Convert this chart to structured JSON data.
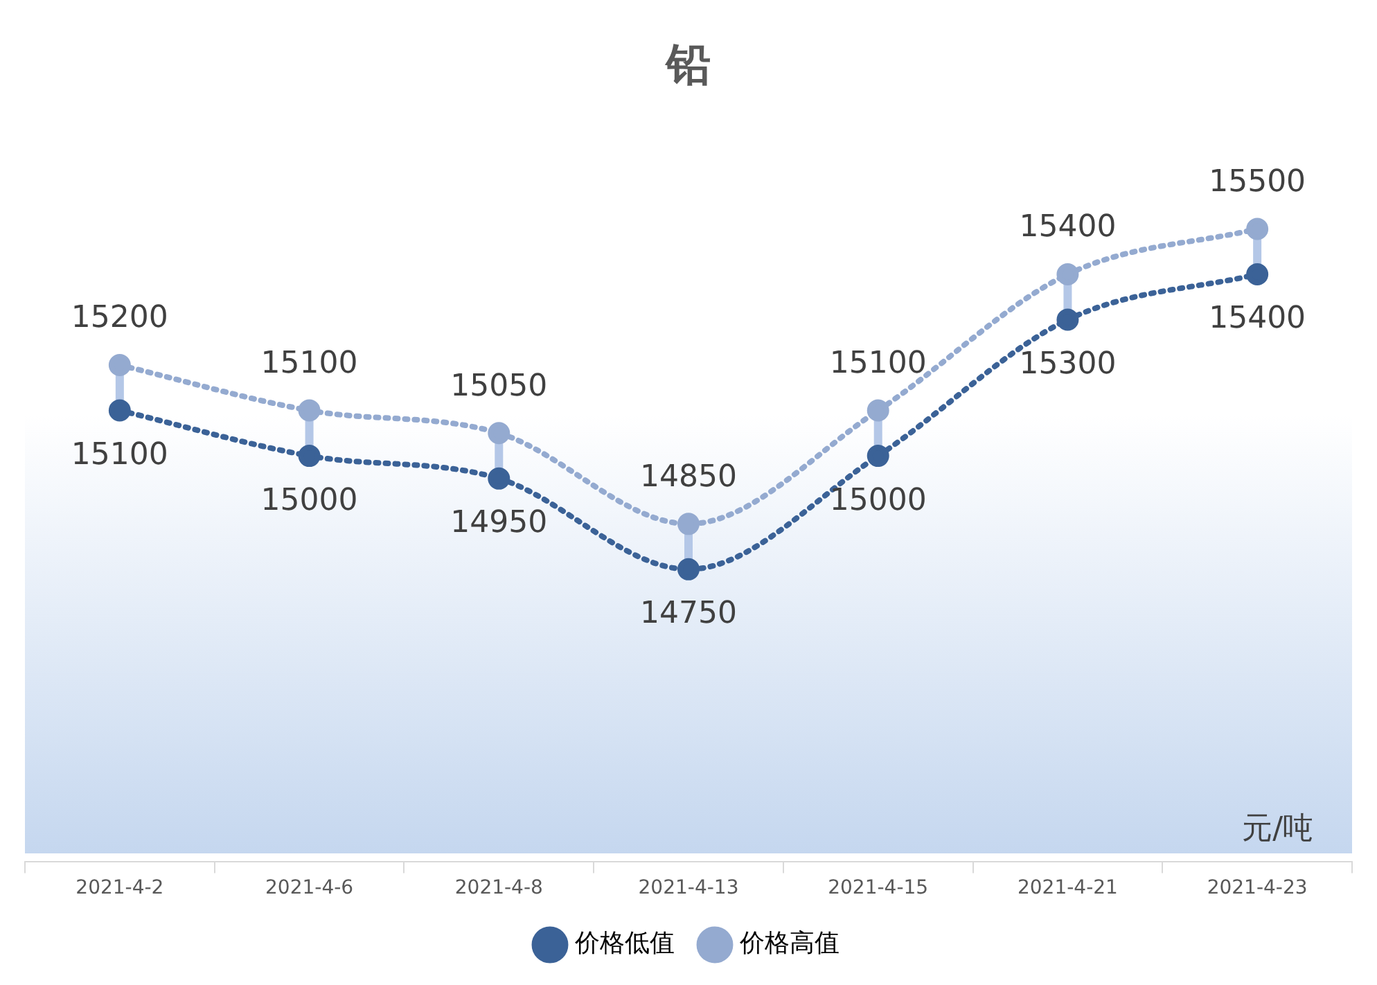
{
  "chart_data": {
    "type": "line",
    "title": "铅",
    "categories": [
      "2021-4-2",
      "2021-4-6",
      "2021-4-8",
      "2021-4-13",
      "2021-4-15",
      "2021-4-21",
      "2021-4-23"
    ],
    "series": [
      {
        "name": "价格低值",
        "color": "#3b6297",
        "values": [
          15100,
          15000,
          14950,
          14750,
          15000,
          15300,
          15400
        ]
      },
      {
        "name": "价格高值",
        "color": "#94aad0",
        "values": [
          15200,
          15100,
          15050,
          14850,
          15100,
          15400,
          15500
        ]
      }
    ],
    "data_labels": true,
    "legend": "bottom",
    "marker": "circle",
    "line_style": "dotted",
    "annotations": [
      "元/吨"
    ]
  }
}
